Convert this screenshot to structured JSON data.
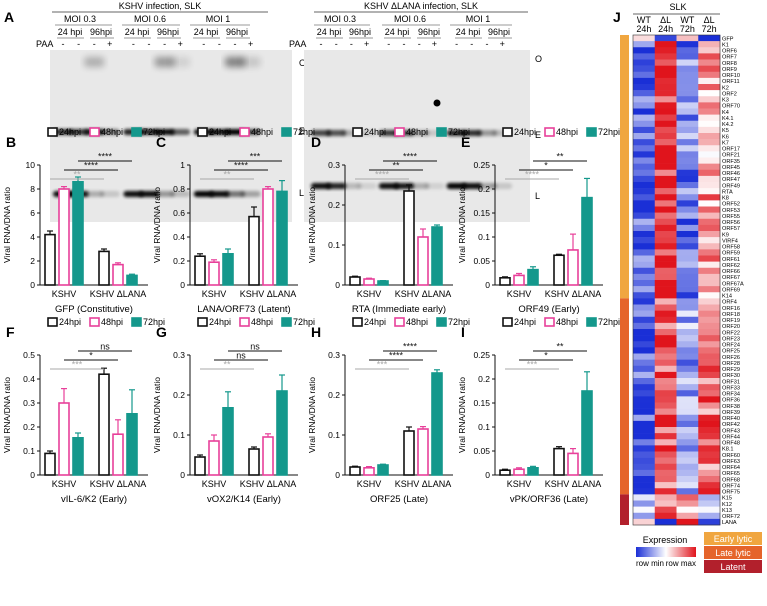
{
  "figure": {
    "panel_letters": [
      "A",
      "B",
      "C",
      "D",
      "E",
      "F",
      "G",
      "H",
      "I",
      "J"
    ],
    "blots": {
      "kshv": {
        "title": "KSHV infection, SLK",
        "moi": [
          "MOI 0.3",
          "MOI 0.6",
          "MOI 1"
        ],
        "hpi": [
          "24 hpi",
          "96hpi",
          "24 hpi",
          "96hpi",
          "24 hpi",
          "96hpi"
        ],
        "paa_label": "PAA",
        "paa_signs": [
          "-",
          "-",
          "-",
          "+",
          "-",
          "-",
          "-",
          "+",
          "-",
          "-",
          "-",
          "+"
        ],
        "band_labels": [
          "O",
          "E",
          "L"
        ]
      },
      "dlana": {
        "title": "KSHV ΔLANA infection, SLK",
        "moi": [
          "MOI 0.3",
          "MOI 0.6",
          "MOI 1"
        ],
        "hpi": [
          "24 hpi",
          "96hpi",
          "24 hpi",
          "96hpi",
          "24 hpi",
          "96hpi"
        ],
        "paa_label": "PAA",
        "paa_signs": [
          "-",
          "-",
          "-",
          "+",
          "-",
          "-",
          "-",
          "+",
          "-",
          "-",
          "-",
          "+"
        ],
        "band_labels": [
          "O",
          "E",
          "L"
        ]
      }
    },
    "legend": [
      "24hpi",
      "48hpi",
      "72hpi"
    ],
    "series_colors": [
      "#111111",
      "#e8409a",
      "#14988c"
    ],
    "groups": [
      "KSHV",
      "KSHV ΔLANA"
    ],
    "ylabel": "Viral RNA/DNA ratio",
    "heatmap": {
      "title": "SLK",
      "columns": [
        "WT 24h",
        "ΔL 24h",
        "WT 72h",
        "ΔL 72h"
      ],
      "col_top": [
        "WT",
        "ΔL",
        "WT",
        "ΔL"
      ],
      "col_bottom": [
        "24h",
        "24h",
        "72h",
        "72h"
      ],
      "genes": [
        "GFP",
        "K1",
        "ORF6",
        "ORF7",
        "ORF8",
        "ORF9",
        "ORF10",
        "ORF11",
        "K2",
        "ORF2",
        "K3",
        "ORF70",
        "K4",
        "K4.1",
        "K4.2",
        "K5",
        "K6",
        "K7",
        "ORF17",
        "ORF21",
        "ORF35",
        "ORF45",
        "ORF46",
        "ORF47",
        "ORF49",
        "RTA",
        "K8",
        "ORF52",
        "ORF53",
        "ORF55",
        "ORF56",
        "ORF57",
        "K9",
        "VIRF4",
        "ORF58",
        "ORF59",
        "ORF61",
        "ORF62",
        "ORF66",
        "ORF67",
        "ORF67A",
        "ORF69",
        "K14",
        "ORF4",
        "ORF16",
        "ORF18",
        "ORF19",
        "ORF20",
        "ORF22",
        "ORF23",
        "ORF24",
        "ORF25",
        "ORF26",
        "ORF28",
        "ORF29",
        "ORF30",
        "ORF31",
        "ORF33",
        "ORF34",
        "ORF36",
        "ORF38",
        "ORF39",
        "ORF40",
        "ORF42",
        "ORF43",
        "ORF44",
        "ORF48",
        "K8.1",
        "ORF60",
        "ORF63",
        "ORF64",
        "ORF65",
        "ORF68",
        "ORF74",
        "ORF75",
        "K15",
        "K12",
        "K13",
        "ORF72",
        "LANA"
      ],
      "expression_label": "Expression",
      "scale_min": "row min",
      "scale_max": "row max",
      "categories": [
        {
          "name": "Early lytic",
          "color": "#f0a640"
        },
        {
          "name": "Late lytic",
          "color": "#e5642b"
        },
        {
          "name": "Latent",
          "color": "#b2202c"
        }
      ]
    }
  },
  "chart_data": [
    {
      "type": "bar",
      "panel": "B",
      "xlabel": "GFP (Constitutive)",
      "ylabel": "Viral RNA/DNA ratio",
      "ylim": [
        0,
        10
      ],
      "yticks": [
        0,
        2,
        4,
        6,
        8,
        10
      ],
      "categories": [
        "KSHV",
        "KSHV ΔLANA"
      ],
      "series": [
        {
          "name": "24hpi",
          "values": [
            4.2,
            2.8
          ],
          "err": [
            0.3,
            0.2
          ]
        },
        {
          "name": "48hpi",
          "values": [
            8.0,
            1.7
          ],
          "err": [
            0.2,
            0.15
          ]
        },
        {
          "name": "72hpi",
          "values": [
            8.6,
            0.8
          ],
          "err": [
            0.4,
            0.1
          ]
        }
      ],
      "sig": [
        {
          "label": "**",
          "grey": true
        },
        {
          "label": "****",
          "grey": false
        },
        {
          "label": "****",
          "grey": false
        }
      ]
    },
    {
      "type": "bar",
      "panel": "C",
      "xlabel": "LANA/ORF73 (Latent)",
      "ylabel": "Viral RNA/DNA ratio",
      "ylim": [
        0,
        1.0
      ],
      "yticks": [
        0,
        0.2,
        0.4,
        0.6,
        0.8,
        1.0
      ],
      "categories": [
        "KSHV",
        "KSHV ΔLANA"
      ],
      "series": [
        {
          "name": "24hpi",
          "values": [
            0.24,
            0.57
          ],
          "err": [
            0.02,
            0.08
          ]
        },
        {
          "name": "48hpi",
          "values": [
            0.19,
            0.8
          ],
          "err": [
            0.02,
            0.02
          ]
        },
        {
          "name": "72hpi",
          "values": [
            0.26,
            0.78
          ],
          "err": [
            0.04,
            0.09
          ]
        }
      ],
      "sig": [
        {
          "label": "**",
          "grey": true
        },
        {
          "label": "****",
          "grey": false
        },
        {
          "label": "***",
          "grey": false
        }
      ]
    },
    {
      "type": "bar",
      "panel": "D",
      "xlabel": "RTA (Immediate early)",
      "ylabel": "Viral RNA/DNA ratio",
      "ylim": [
        0,
        0.3
      ],
      "yticks": [
        0,
        0.1,
        0.2,
        0.3
      ],
      "categories": [
        "KSHV",
        "KSHV ΔLANA"
      ],
      "series": [
        {
          "name": "24hpi",
          "values": [
            0.02,
            0.235
          ],
          "err": [
            0.002,
            0.015
          ]
        },
        {
          "name": "48hpi",
          "values": [
            0.015,
            0.12
          ],
          "err": [
            0.002,
            0.02
          ]
        },
        {
          "name": "72hpi",
          "values": [
            0.01,
            0.145
          ],
          "err": [
            0.001,
            0.005
          ]
        }
      ],
      "sig": [
        {
          "label": "****",
          "grey": true
        },
        {
          "label": "**",
          "grey": false
        },
        {
          "label": "****",
          "grey": false
        }
      ]
    },
    {
      "type": "bar",
      "panel": "E",
      "xlabel": "ORF49 (Early)",
      "ylabel": "Viral RNA/DNA ratio",
      "ylim": [
        0,
        0.25
      ],
      "yticks": [
        0,
        0.05,
        0.1,
        0.15,
        0.2,
        0.25
      ],
      "categories": [
        "KSHV",
        "KSHV ΔLANA"
      ],
      "series": [
        {
          "name": "24hpi",
          "values": [
            0.015,
            0.062
          ],
          "err": [
            0.002,
            0.002
          ]
        },
        {
          "name": "48hpi",
          "values": [
            0.02,
            0.073
          ],
          "err": [
            0.004,
            0.033
          ]
        },
        {
          "name": "72hpi",
          "values": [
            0.032,
            0.182
          ],
          "err": [
            0.006,
            0.04
          ]
        }
      ],
      "sig": [
        {
          "label": "****",
          "grey": true
        },
        {
          "label": "*",
          "grey": false
        },
        {
          "label": "**",
          "grey": false
        }
      ]
    },
    {
      "type": "bar",
      "panel": "F",
      "xlabel": "vIL-6/K2 (Early)",
      "ylabel": "Viral RNA/DNA ratio",
      "ylim": [
        0,
        0.5
      ],
      "yticks": [
        0,
        0.1,
        0.2,
        0.3,
        0.4,
        0.5
      ],
      "categories": [
        "KSHV",
        "KSHV ΔLANA"
      ],
      "series": [
        {
          "name": "24hpi",
          "values": [
            0.09,
            0.42
          ],
          "err": [
            0.01,
            0.025
          ]
        },
        {
          "name": "48hpi",
          "values": [
            0.3,
            0.17
          ],
          "err": [
            0.06,
            0.06
          ]
        },
        {
          "name": "72hpi",
          "values": [
            0.155,
            0.255
          ],
          "err": [
            0.02,
            0.1
          ]
        }
      ],
      "sig": [
        {
          "label": "***",
          "grey": true
        },
        {
          "label": "*",
          "grey": false
        },
        {
          "label": "ns",
          "grey": false
        }
      ]
    },
    {
      "type": "bar",
      "panel": "G",
      "xlabel": "vOX2/K14 (Early)",
      "ylabel": "Viral RNA/DNA ratio",
      "ylim": [
        0,
        0.3
      ],
      "yticks": [
        0,
        0.1,
        0.2,
        0.3
      ],
      "categories": [
        "KSHV",
        "KSHV ΔLANA"
      ],
      "series": [
        {
          "name": "24hpi",
          "values": [
            0.045,
            0.065
          ],
          "err": [
            0.005,
            0.005
          ]
        },
        {
          "name": "48hpi",
          "values": [
            0.085,
            0.095
          ],
          "err": [
            0.015,
            0.008
          ]
        },
        {
          "name": "72hpi",
          "values": [
            0.168,
            0.21
          ],
          "err": [
            0.04,
            0.04
          ]
        }
      ],
      "sig": [
        {
          "label": "**",
          "grey": true
        },
        {
          "label": "ns",
          "grey": false
        },
        {
          "label": "ns",
          "grey": false
        }
      ]
    },
    {
      "type": "bar",
      "panel": "H",
      "xlabel": "ORF25 (Late)",
      "ylabel": "Viral RNA/DNA ratio",
      "ylim": [
        0,
        0.3
      ],
      "yticks": [
        0,
        0.1,
        0.2,
        0.3
      ],
      "categories": [
        "KSHV",
        "KSHV ΔLANA"
      ],
      "series": [
        {
          "name": "24hpi",
          "values": [
            0.02,
            0.11
          ],
          "err": [
            0.002,
            0.01
          ]
        },
        {
          "name": "48hpi",
          "values": [
            0.018,
            0.115
          ],
          "err": [
            0.003,
            0.006
          ]
        },
        {
          "name": "72hpi",
          "values": [
            0.025,
            0.255
          ],
          "err": [
            0.002,
            0.008
          ]
        }
      ],
      "sig": [
        {
          "label": "***",
          "grey": true
        },
        {
          "label": "****",
          "grey": false
        },
        {
          "label": "****",
          "grey": false
        }
      ]
    },
    {
      "type": "bar",
      "panel": "I",
      "xlabel": "vPK/ORF36 (Late)",
      "ylabel": "Viral RNA/DNA ratio",
      "ylim": [
        0,
        0.25
      ],
      "yticks": [
        0,
        0.05,
        0.1,
        0.15,
        0.2,
        0.25
      ],
      "categories": [
        "KSHV",
        "KSHV ΔLANA"
      ],
      "series": [
        {
          "name": "24hpi",
          "values": [
            0.01,
            0.055
          ],
          "err": [
            0.002,
            0.004
          ]
        },
        {
          "name": "48hpi",
          "values": [
            0.012,
            0.045
          ],
          "err": [
            0.003,
            0.01
          ]
        },
        {
          "name": "72hpi",
          "values": [
            0.015,
            0.175
          ],
          "err": [
            0.003,
            0.04
          ]
        }
      ],
      "sig": [
        {
          "label": "***",
          "grey": true
        },
        {
          "label": "*",
          "grey": false
        },
        {
          "label": "**",
          "grey": false
        }
      ]
    }
  ]
}
